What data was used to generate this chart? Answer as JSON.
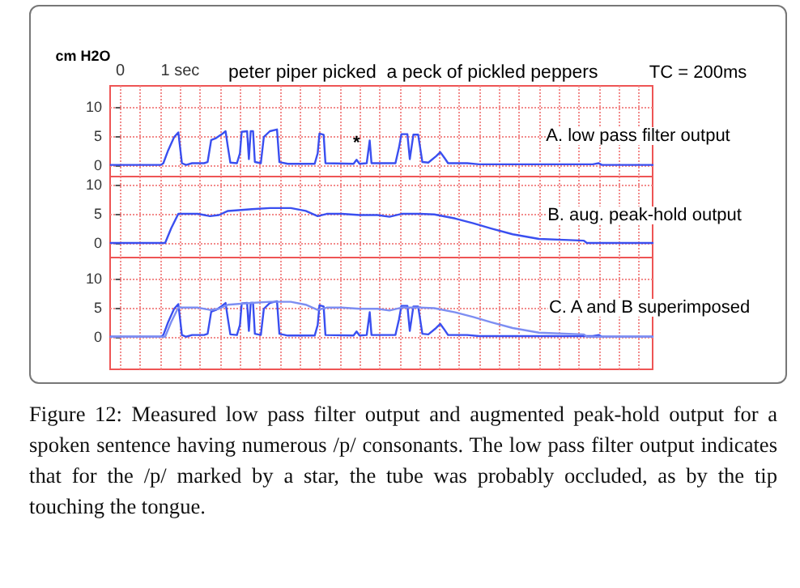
{
  "chart_data": [
    {
      "type": "line",
      "title": "peter piper picked  a peck of pickled peppers",
      "ylabel": "cm H2O",
      "annotations": [
        "TC = 200ms",
        "A. low pass filter output",
        {
          "text": "*",
          "x": 3.95,
          "y": 2.2
        }
      ],
      "series": [
        {
          "color": "#3a4ff0",
          "x": [
            -0.16,
            0.68,
            0.72,
            0.8,
            0.9,
            0.97,
            1.0,
            1.03,
            1.1,
            1.2,
            1.4,
            1.46,
            1.52,
            1.6,
            1.7,
            1.76,
            1.8,
            1.84,
            1.95,
            2.0,
            2.03,
            2.12,
            2.15,
            2.18,
            2.22,
            2.25,
            2.35,
            2.4,
            2.5,
            2.62,
            2.66,
            2.8,
            3.25,
            3.3,
            3.33,
            3.4,
            3.43,
            3.9,
            3.95,
            4.0,
            4.12,
            4.17,
            4.2,
            4.6,
            4.66,
            4.7,
            4.8,
            4.84,
            4.9,
            4.98,
            5.05,
            5.15,
            5.28,
            5.35,
            5.42,
            5.48,
            5.8,
            6.0,
            7.9,
            8.0,
            8.05,
            8.9
          ],
          "values": [
            0,
            0,
            0.3,
            2.5,
            4.8,
            5.6,
            3,
            0.3,
            0,
            0.3,
            0.3,
            0.5,
            4.3,
            4.6,
            5.3,
            5.8,
            3,
            0.4,
            0.3,
            2,
            5.7,
            5.8,
            1,
            5.8,
            5.8,
            0.5,
            0.3,
            4.8,
            5.8,
            6.1,
            0.5,
            0.2,
            0.2,
            2,
            5.4,
            5.2,
            0.3,
            0.2,
            0.9,
            0.2,
            0.3,
            4.2,
            0.3,
            0.3,
            3,
            5.3,
            5.3,
            1,
            5.2,
            5.2,
            0.5,
            0.4,
            1.5,
            2.2,
            1.2,
            0.3,
            0.3,
            0.1,
            0.1,
            0.3,
            0,
            0
          ]
        }
      ],
      "xlim": [
        -0.17,
        8.9
      ],
      "ylim": [
        -2,
        13.6
      ],
      "xticks": [
        {
          "value": 0,
          "label": "0"
        },
        {
          "value": 0.33,
          "label": null
        },
        {
          "value": 0.67,
          "label": null
        },
        {
          "value": 1,
          "label": "1 sec"
        },
        {
          "value": 1.33,
          "label": null
        },
        {
          "value": 1.67,
          "label": null
        },
        {
          "value": 2,
          "label": null
        },
        {
          "value": 2.33,
          "label": null
        },
        {
          "value": 2.67,
          "label": null
        },
        {
          "value": 3,
          "label": null
        },
        {
          "value": 3.33,
          "label": null
        },
        {
          "value": 3.67,
          "label": null
        },
        {
          "value": 4,
          "label": null
        },
        {
          "value": 4.33,
          "label": null
        },
        {
          "value": 4.67,
          "label": null
        },
        {
          "value": 5,
          "label": null
        },
        {
          "value": 5.33,
          "label": null
        },
        {
          "value": 5.67,
          "label": null
        },
        {
          "value": 6,
          "label": null
        },
        {
          "value": 6.33,
          "label": null
        },
        {
          "value": 6.67,
          "label": null
        },
        {
          "value": 7,
          "label": null
        },
        {
          "value": 7.33,
          "label": null
        },
        {
          "value": 7.67,
          "label": null
        },
        {
          "value": 8,
          "label": null
        },
        {
          "value": 8.33,
          "label": null
        },
        {
          "value": 8.67,
          "label": null
        }
      ],
      "yticks": [
        0,
        5,
        10
      ],
      "grid": true
    },
    {
      "type": "line",
      "annotations": [
        "B. aug. peak-hold output"
      ],
      "series": [
        {
          "color": "#3a4ff0",
          "x": [
            -0.16,
            0.75,
            0.85,
            0.97,
            1.3,
            1.5,
            1.65,
            1.8,
            2.2,
            2.5,
            2.85,
            3.1,
            3.3,
            3.45,
            3.7,
            4.0,
            4.3,
            4.5,
            4.7,
            5.0,
            5.25,
            5.6,
            5.9,
            6.2,
            6.56,
            7.0,
            7.5,
            7.75,
            7.8,
            8.9
          ],
          "values": [
            0,
            0,
            2.5,
            5,
            5,
            4.6,
            4.8,
            5.5,
            5.8,
            6,
            6,
            5.5,
            4.6,
            5,
            5,
            4.8,
            4.8,
            4.5,
            5,
            5,
            4.9,
            4.2,
            3.4,
            2.5,
            1.5,
            0.7,
            0.5,
            0.4,
            0,
            0
          ]
        }
      ],
      "xlim": [
        -0.17,
        8.9
      ],
      "ylim": [
        -2.5,
        11.4
      ],
      "xticks": [
        {
          "value": 0,
          "label": null
        },
        {
          "value": 0.33,
          "label": null
        },
        {
          "value": 0.67,
          "label": null
        },
        {
          "value": 1,
          "label": null
        },
        {
          "value": 1.33,
          "label": null
        },
        {
          "value": 1.67,
          "label": null
        },
        {
          "value": 2,
          "label": null
        },
        {
          "value": 2.33,
          "label": null
        },
        {
          "value": 2.67,
          "label": null
        },
        {
          "value": 3,
          "label": null
        },
        {
          "value": 3.33,
          "label": null
        },
        {
          "value": 3.67,
          "label": null
        },
        {
          "value": 4,
          "label": null
        },
        {
          "value": 4.33,
          "label": null
        },
        {
          "value": 4.67,
          "label": null
        },
        {
          "value": 5,
          "label": null
        },
        {
          "value": 5.33,
          "label": null
        },
        {
          "value": 5.67,
          "label": null
        },
        {
          "value": 6,
          "label": null
        },
        {
          "value": 6.33,
          "label": null
        },
        {
          "value": 6.67,
          "label": null
        },
        {
          "value": 7,
          "label": null
        },
        {
          "value": 7.33,
          "label": null
        },
        {
          "value": 7.67,
          "label": null
        },
        {
          "value": 8,
          "label": null
        },
        {
          "value": 8.33,
          "label": null
        },
        {
          "value": 8.67,
          "label": null
        }
      ],
      "yticks": [
        0,
        5,
        10
      ],
      "grid": true,
      "tick_labels": "y"
    },
    {
      "type": "line",
      "annotations": [
        "C. A and B superimposed",
        "Figure 12: Measured low pass filter output and augmented peak-hold output for a spoken sentence having numerous /p/ consonants. The low pass filter output indicates that for the /p/ marked by a star, the tube was probably occluded, as by the tip touching the tongue."
      ],
      "series": [
        {
          "color": "#3a4ff0",
          "x": [
            -0.16,
            0.68,
            0.72,
            0.8,
            0.9,
            0.97,
            1.0,
            1.03,
            1.1,
            1.2,
            1.4,
            1.46,
            1.52,
            1.6,
            1.7,
            1.76,
            1.8,
            1.84,
            1.95,
            2.0,
            2.03,
            2.12,
            2.15,
            2.18,
            2.22,
            2.25,
            2.35,
            2.4,
            2.5,
            2.62,
            2.66,
            2.8,
            3.25,
            3.3,
            3.33,
            3.4,
            3.43,
            3.9,
            3.95,
            4.0,
            4.12,
            4.17,
            4.2,
            4.6,
            4.66,
            4.7,
            4.8,
            4.84,
            4.9,
            4.98,
            5.05,
            5.15,
            5.28,
            5.35,
            5.42,
            5.48,
            5.8,
            6.0,
            7.9,
            8.0,
            8.05,
            8.9
          ],
          "values": [
            0,
            0,
            0.3,
            2.5,
            4.8,
            5.6,
            3,
            0.3,
            0,
            0.3,
            0.3,
            0.5,
            4.3,
            4.6,
            5.3,
            5.8,
            3,
            0.4,
            0.3,
            2,
            5.7,
            5.8,
            1,
            5.8,
            5.8,
            0.5,
            0.3,
            4.8,
            5.8,
            6.1,
            0.5,
            0.2,
            0.2,
            2,
            5.4,
            5.2,
            0.3,
            0.2,
            0.9,
            0.2,
            0.3,
            4.2,
            0.3,
            0.3,
            3,
            5.3,
            5.3,
            1,
            5.2,
            5.2,
            0.5,
            0.4,
            1.5,
            2.2,
            1.2,
            0.3,
            0.3,
            0.1,
            0.1,
            0.3,
            0,
            0
          ]
        },
        {
          "color": "#7d8ef2",
          "x": [
            -0.16,
            0.75,
            0.85,
            0.97,
            1.3,
            1.5,
            1.65,
            1.8,
            2.2,
            2.5,
            2.85,
            3.1,
            3.3,
            3.45,
            3.7,
            4.0,
            4.3,
            4.5,
            4.7,
            5.0,
            5.25,
            5.6,
            5.9,
            6.2,
            6.56,
            7.0,
            7.5,
            7.75,
            7.8,
            8.9
          ],
          "values": [
            0,
            0,
            2.5,
            5,
            5,
            4.6,
            4.8,
            5.5,
            5.8,
            6,
            6,
            5.5,
            4.6,
            5,
            5,
            4.8,
            4.8,
            4.5,
            5,
            5,
            4.9,
            4.2,
            3.4,
            2.5,
            1.5,
            0.7,
            0.5,
            0.4,
            0,
            0
          ]
        }
      ],
      "xlim": [
        -0.17,
        8.9
      ],
      "ylim": [
        -5.6,
        13.6
      ],
      "xticks": [
        {
          "value": 0,
          "label": null
        },
        {
          "value": 0.33,
          "label": null
        },
        {
          "value": 0.67,
          "label": null
        },
        {
          "value": 1,
          "label": null
        },
        {
          "value": 1.33,
          "label": null
        },
        {
          "value": 1.67,
          "label": null
        },
        {
          "value": 2,
          "label": null
        },
        {
          "value": 2.33,
          "label": null
        },
        {
          "value": 2.67,
          "label": null
        },
        {
          "value": 3,
          "label": null
        },
        {
          "value": 3.33,
          "label": null
        },
        {
          "value": 3.67,
          "label": null
        },
        {
          "value": 4,
          "label": null
        },
        {
          "value": 4.33,
          "label": null
        },
        {
          "value": 4.67,
          "label": null
        },
        {
          "value": 5,
          "label": null
        },
        {
          "value": 5.33,
          "label": null
        },
        {
          "value": 5.67,
          "label": null
        },
        {
          "value": 6,
          "label": null
        },
        {
          "value": 6.33,
          "label": null
        },
        {
          "value": 6.67,
          "label": null
        },
        {
          "value": 7,
          "label": null
        },
        {
          "value": 7.33,
          "label": null
        },
        {
          "value": 7.67,
          "label": null
        },
        {
          "value": 8,
          "label": null
        },
        {
          "value": 8.33,
          "label": null
        },
        {
          "value": 8.67,
          "label": null
        }
      ],
      "yticks": [
        0,
        5,
        10
      ],
      "grid": true,
      "tick_labels": "y"
    }
  ]
}
